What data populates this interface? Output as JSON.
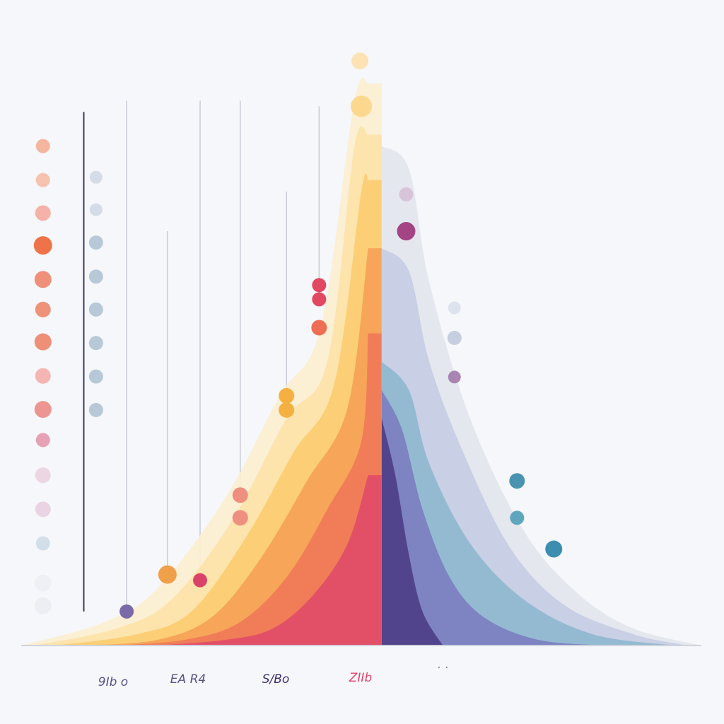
{
  "palette": {
    "background": "#f6f7fa",
    "warm": [
      "#fbe9c2",
      "#fcd98c",
      "#f9b35a",
      "#f08a58",
      "#e95a5f",
      "#d93b6c"
    ],
    "cool": [
      "#402f7a",
      "#6a5aa6",
      "#8e95c6",
      "#b7c7dd",
      "#9ccbd6"
    ],
    "lines": "#c8cbd6",
    "axis_line": "#3c3a6a"
  },
  "chart_data": {
    "type": "area",
    "title": "",
    "xlabel": "",
    "ylabel": "",
    "grid": false,
    "legend": "none",
    "peak_x": 0.53,
    "tick_labels": [
      {
        "text": "9Ib o",
        "color": "#5a4f8c"
      },
      {
        "text": "EA R4",
        "color": "#5a4f8c"
      },
      {
        "text": "S/Bo",
        "color": "#3e2f6a"
      },
      {
        "text": "ZIIb",
        "color": "#e2436a"
      },
      {
        "text": "· ·",
        "color": "#7d7fa8"
      }
    ],
    "series": [
      {
        "side": "left",
        "fill": "#fbeed0",
        "points": [
          [
            0.0,
            0.0
          ],
          [
            0.12,
            0.04
          ],
          [
            0.2,
            0.1
          ],
          [
            0.3,
            0.26
          ],
          [
            0.38,
            0.44
          ],
          [
            0.44,
            0.56
          ],
          [
            0.49,
            0.96
          ],
          [
            0.51,
            0.99
          ]
        ]
      },
      {
        "side": "left",
        "fill": "#fde3a8",
        "points": [
          [
            0.02,
            0.0
          ],
          [
            0.14,
            0.03
          ],
          [
            0.22,
            0.08
          ],
          [
            0.31,
            0.22
          ],
          [
            0.39,
            0.4
          ],
          [
            0.45,
            0.5
          ],
          [
            0.49,
            0.88
          ],
          [
            0.51,
            0.9
          ]
        ]
      },
      {
        "side": "left",
        "fill": "#fccd72",
        "points": [
          [
            0.05,
            0.0
          ],
          [
            0.17,
            0.02
          ],
          [
            0.25,
            0.06
          ],
          [
            0.33,
            0.19
          ],
          [
            0.4,
            0.34
          ],
          [
            0.46,
            0.46
          ],
          [
            0.5,
            0.8
          ],
          [
            0.51,
            0.82
          ]
        ]
      },
      {
        "side": "left",
        "fill": "#f6a256",
        "points": [
          [
            0.09,
            0.0
          ],
          [
            0.2,
            0.01
          ],
          [
            0.28,
            0.05
          ],
          [
            0.35,
            0.15
          ],
          [
            0.42,
            0.29
          ],
          [
            0.48,
            0.42
          ],
          [
            0.51,
            0.7
          ]
        ]
      },
      {
        "side": "left",
        "fill": "#ef7a58",
        "points": [
          [
            0.14,
            0.0
          ],
          [
            0.24,
            0.01
          ],
          [
            0.32,
            0.04
          ],
          [
            0.39,
            0.12
          ],
          [
            0.45,
            0.24
          ],
          [
            0.5,
            0.36
          ],
          [
            0.51,
            0.55
          ]
        ]
      },
      {
        "side": "left",
        "fill": "#e14c68",
        "points": [
          [
            0.2,
            0.0
          ],
          [
            0.3,
            0.01
          ],
          [
            0.37,
            0.03
          ],
          [
            0.43,
            0.09
          ],
          [
            0.48,
            0.18
          ],
          [
            0.51,
            0.3
          ]
        ]
      },
      {
        "side": "right",
        "fill": "#e3e5ee",
        "points": [
          [
            0.53,
            0.88
          ],
          [
            0.57,
            0.84
          ],
          [
            0.6,
            0.64
          ],
          [
            0.66,
            0.4
          ],
          [
            0.74,
            0.2
          ],
          [
            0.82,
            0.09
          ],
          [
            0.9,
            0.03
          ],
          [
            1.0,
            0.0
          ]
        ]
      },
      {
        "side": "right",
        "fill": "#c7cde3",
        "points": [
          [
            0.53,
            0.7
          ],
          [
            0.57,
            0.66
          ],
          [
            0.6,
            0.5
          ],
          [
            0.65,
            0.34
          ],
          [
            0.72,
            0.17
          ],
          [
            0.8,
            0.07
          ],
          [
            0.9,
            0.02
          ],
          [
            0.98,
            0.0
          ]
        ]
      },
      {
        "side": "right",
        "fill": "#8fb8d0",
        "points": [
          [
            0.53,
            0.5
          ],
          [
            0.57,
            0.45
          ],
          [
            0.6,
            0.32
          ],
          [
            0.66,
            0.18
          ],
          [
            0.74,
            0.08
          ],
          [
            0.84,
            0.02
          ],
          [
            0.96,
            0.0
          ]
        ]
      },
      {
        "side": "right",
        "fill": "#7b7fbf",
        "points": [
          [
            0.53,
            0.45
          ],
          [
            0.56,
            0.38
          ],
          [
            0.59,
            0.24
          ],
          [
            0.63,
            0.12
          ],
          [
            0.68,
            0.05
          ],
          [
            0.76,
            0.01
          ],
          [
            0.86,
            0.0
          ]
        ]
      },
      {
        "side": "right",
        "fill": "#4e3f88",
        "points": [
          [
            0.53,
            0.4
          ],
          [
            0.55,
            0.3
          ],
          [
            0.57,
            0.16
          ],
          [
            0.59,
            0.06
          ],
          [
            0.62,
            0.0
          ]
        ]
      }
    ],
    "stems": [
      {
        "x": 0.092,
        "top": 0.94,
        "bottom": 0.06,
        "color": "#3c3a6a"
      },
      {
        "x": 0.155,
        "top": 0.96,
        "bottom": 0.06,
        "color": "#c8cbd6"
      },
      {
        "x": 0.215,
        "top": 0.73,
        "bottom": 0.14,
        "color": "#c8cbd6"
      },
      {
        "x": 0.263,
        "top": 0.96,
        "bottom": 0.12,
        "color": "#c8cbd6"
      },
      {
        "x": 0.322,
        "top": 0.96,
        "bottom": 0.26,
        "color": "#c8cbd6"
      },
      {
        "x": 0.39,
        "top": 0.8,
        "bottom": 0.44,
        "color": "#c8cbd6"
      },
      {
        "x": 0.438,
        "top": 0.95,
        "bottom": 0.6,
        "color": "#c8cbd6"
      }
    ],
    "points": [
      {
        "x": 0.032,
        "y": 0.88,
        "r": 0.01,
        "color": "#f5b6a0"
      },
      {
        "x": 0.032,
        "y": 0.82,
        "r": 0.01,
        "color": "#f7c2b0"
      },
      {
        "x": 0.032,
        "y": 0.762,
        "r": 0.011,
        "color": "#f4b2a8"
      },
      {
        "x": 0.032,
        "y": 0.705,
        "r": 0.013,
        "color": "#ef7348"
      },
      {
        "x": 0.032,
        "y": 0.645,
        "r": 0.012,
        "color": "#ef907a"
      },
      {
        "x": 0.032,
        "y": 0.592,
        "r": 0.011,
        "color": "#ef927a"
      },
      {
        "x": 0.032,
        "y": 0.535,
        "r": 0.012,
        "color": "#ee8f78"
      },
      {
        "x": 0.032,
        "y": 0.475,
        "r": 0.011,
        "color": "#f5b5b2"
      },
      {
        "x": 0.032,
        "y": 0.416,
        "r": 0.012,
        "color": "#ed9590"
      },
      {
        "x": 0.032,
        "y": 0.362,
        "r": 0.01,
        "color": "#e6a2b4"
      },
      {
        "x": 0.032,
        "y": 0.3,
        "r": 0.011,
        "color": "#ecd6e4"
      },
      {
        "x": 0.032,
        "y": 0.24,
        "r": 0.011,
        "color": "#ead4e4"
      },
      {
        "x": 0.032,
        "y": 0.18,
        "r": 0.01,
        "color": "#d2dfe8"
      },
      {
        "x": 0.032,
        "y": 0.11,
        "r": 0.012,
        "color": "#eef0f5"
      },
      {
        "x": 0.032,
        "y": 0.07,
        "r": 0.012,
        "color": "#eceef3"
      },
      {
        "x": 0.11,
        "y": 0.825,
        "r": 0.009,
        "color": "#d4dde7"
      },
      {
        "x": 0.11,
        "y": 0.768,
        "r": 0.009,
        "color": "#d4dde7"
      },
      {
        "x": 0.11,
        "y": 0.71,
        "r": 0.01,
        "color": "#b7c9d6"
      },
      {
        "x": 0.11,
        "y": 0.65,
        "r": 0.01,
        "color": "#b7c9d6"
      },
      {
        "x": 0.11,
        "y": 0.592,
        "r": 0.01,
        "color": "#b7c9d6"
      },
      {
        "x": 0.11,
        "y": 0.533,
        "r": 0.01,
        "color": "#b7c9d6"
      },
      {
        "x": 0.11,
        "y": 0.474,
        "r": 0.01,
        "color": "#b7c9d6"
      },
      {
        "x": 0.11,
        "y": 0.415,
        "r": 0.01,
        "color": "#b7c9d6"
      },
      {
        "x": 0.155,
        "y": 0.06,
        "r": 0.01,
        "color": "#7a6ba8"
      },
      {
        "x": 0.215,
        "y": 0.125,
        "r": 0.013,
        "color": "#f0a048"
      },
      {
        "x": 0.263,
        "y": 0.115,
        "r": 0.01,
        "color": "#d9436a"
      },
      {
        "x": 0.322,
        "y": 0.265,
        "r": 0.011,
        "color": "#ef8f7f"
      },
      {
        "x": 0.322,
        "y": 0.225,
        "r": 0.011,
        "color": "#ef8f7f"
      },
      {
        "x": 0.39,
        "y": 0.44,
        "r": 0.011,
        "color": "#f4b040"
      },
      {
        "x": 0.39,
        "y": 0.415,
        "r": 0.011,
        "color": "#f4b040"
      },
      {
        "x": 0.438,
        "y": 0.56,
        "r": 0.011,
        "color": "#ee6d55"
      },
      {
        "x": 0.438,
        "y": 0.61,
        "r": 0.01,
        "color": "#e24860"
      },
      {
        "x": 0.438,
        "y": 0.635,
        "r": 0.01,
        "color": "#e24860"
      },
      {
        "x": 0.5,
        "y": 0.95,
        "r": 0.015,
        "color": "#fbd88e"
      },
      {
        "x": 0.498,
        "y": 1.03,
        "r": 0.012,
        "color": "#fce2b5"
      },
      {
        "x": 0.566,
        "y": 0.795,
        "r": 0.01,
        "color": "#d8c4d8"
      },
      {
        "x": 0.566,
        "y": 0.73,
        "r": 0.013,
        "color": "#a34484"
      },
      {
        "x": 0.637,
        "y": 0.595,
        "r": 0.009,
        "color": "#dce3ec"
      },
      {
        "x": 0.637,
        "y": 0.542,
        "r": 0.01,
        "color": "#c5cfe0"
      },
      {
        "x": 0.637,
        "y": 0.473,
        "r": 0.009,
        "color": "#a985b4"
      },
      {
        "x": 0.729,
        "y": 0.29,
        "r": 0.011,
        "color": "#4a93b0"
      },
      {
        "x": 0.729,
        "y": 0.225,
        "r": 0.01,
        "color": "#5ea6bd"
      },
      {
        "x": 0.783,
        "y": 0.17,
        "r": 0.012,
        "color": "#3c8db0"
      }
    ],
    "xlim": [
      0,
      1
    ],
    "ylim": [
      0,
      1.1
    ]
  }
}
